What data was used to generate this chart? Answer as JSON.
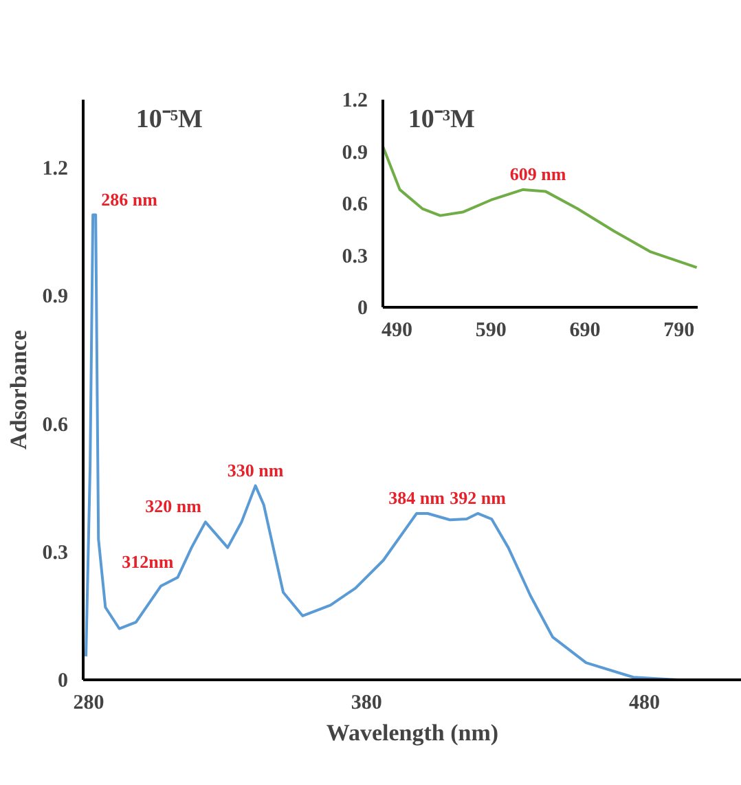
{
  "chart_data": [
    {
      "type": "line",
      "title": "10⁻⁵M",
      "xlabel": "Wavelength (nm)",
      "ylabel": "Adsorbance",
      "xlim": [
        278,
        515
      ],
      "ylim": [
        0,
        1.36
      ],
      "xticks": [
        280,
        380,
        480
      ],
      "yticks": [
        0,
        0.3,
        0.6,
        0.9,
        1.2
      ],
      "grid": false,
      "marker": "none",
      "line_style": "solid",
      "series": [
        {
          "color": "#5b9bd5",
          "x": [
            279,
            280.5,
            281.5,
            282.5,
            283.5,
            286,
            291,
            297,
            306,
            312,
            317,
            322,
            330,
            335,
            340,
            343,
            350,
            357,
            367,
            376,
            386,
            398,
            402,
            410,
            416,
            420,
            425,
            431,
            439,
            447,
            459,
            476,
            492,
            515
          ],
          "values": [
            0.055,
            0.5,
            1.09,
            1.09,
            0.33,
            0.17,
            0.12,
            0.135,
            0.22,
            0.24,
            0.31,
            0.37,
            0.31,
            0.37,
            0.455,
            0.41,
            0.205,
            0.15,
            0.175,
            0.215,
            0.28,
            0.39,
            0.39,
            0.375,
            0.377,
            0.39,
            0.377,
            0.31,
            0.197,
            0.1,
            0.04,
            0.006,
            0,
            0
          ]
        }
      ],
      "annotations": [
        {
          "text": "286 nm",
          "x": 282,
          "y": 1.09
        },
        {
          "text": "312nm",
          "x": 312,
          "y": 0.24
        },
        {
          "text": "320 nm",
          "x": 322,
          "y": 0.37
        },
        {
          "text": "330 nm",
          "x": 340,
          "y": 0.455
        },
        {
          "text": "384 nm",
          "x": 398,
          "y": 0.39
        },
        {
          "text": "392 nm",
          "x": 420,
          "y": 0.39
        }
      ]
    },
    {
      "type": "line",
      "title": "10⁻³M",
      "xlim": [
        475,
        810
      ],
      "ylim": [
        0,
        1.2
      ],
      "xticks": [
        490,
        590,
        690,
        790
      ],
      "yticks": [
        0,
        0.3,
        0.6,
        0.9,
        1.2
      ],
      "grid": false,
      "marker": "none",
      "line_style": "solid",
      "series": [
        {
          "color": "#70ad47",
          "x": [
            475,
            493,
            517,
            536,
            560,
            590,
            624,
            648,
            682,
            721,
            760,
            809
          ],
          "values": [
            0.93,
            0.68,
            0.57,
            0.53,
            0.55,
            0.62,
            0.68,
            0.67,
            0.57,
            0.44,
            0.32,
            0.23
          ]
        }
      ],
      "annotations": [
        {
          "text": "609 nm",
          "x": 640,
          "y": 0.68
        }
      ]
    }
  ]
}
